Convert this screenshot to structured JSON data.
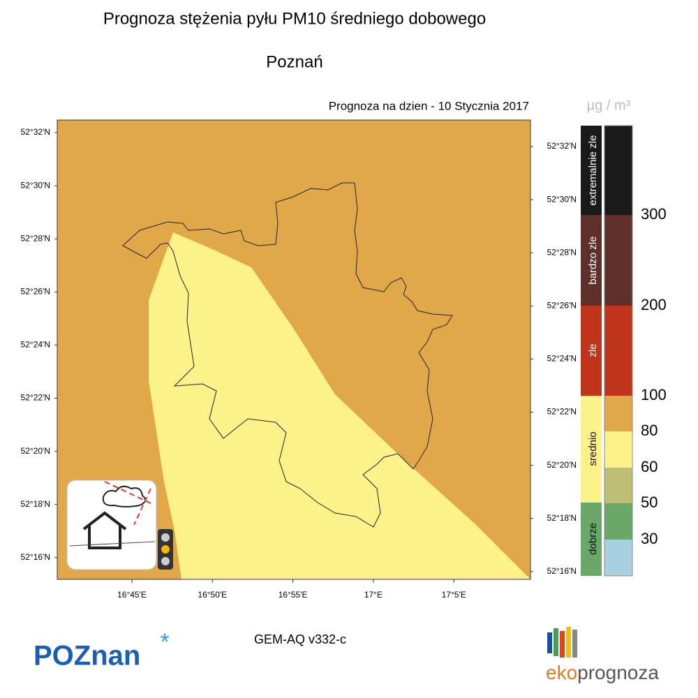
{
  "header": {
    "title": "Prognoza stężenia pyłu PM10 średniego dobowego",
    "city": "Poznań",
    "date": "Prognoza na dzien -  10 Stycznia 2017"
  },
  "map": {
    "lat_labels": [
      "52°32'N",
      "52°30'N",
      "52°28'N",
      "52°26'N",
      "52°24'N",
      "52°22'N",
      "52°20'N",
      "52°18'N",
      "52°16'N"
    ],
    "lon_labels": [
      "16°45'E",
      "16°50'E",
      "16°55'E",
      "17°E",
      "17°5'E"
    ]
  },
  "legend": {
    "unit": "µg / m³",
    "categories": [
      "extremalnie zle",
      "bardzo zle",
      "zle",
      "srednio",
      "dobrze"
    ],
    "thresholds": [
      300,
      200,
      100,
      80,
      60,
      50,
      30
    ]
  },
  "footer": {
    "model": "GEM-AQ v332-c",
    "logo_left": "POZnan",
    "logo_right_a": "eko",
    "logo_right_b": "prognoza"
  }
}
